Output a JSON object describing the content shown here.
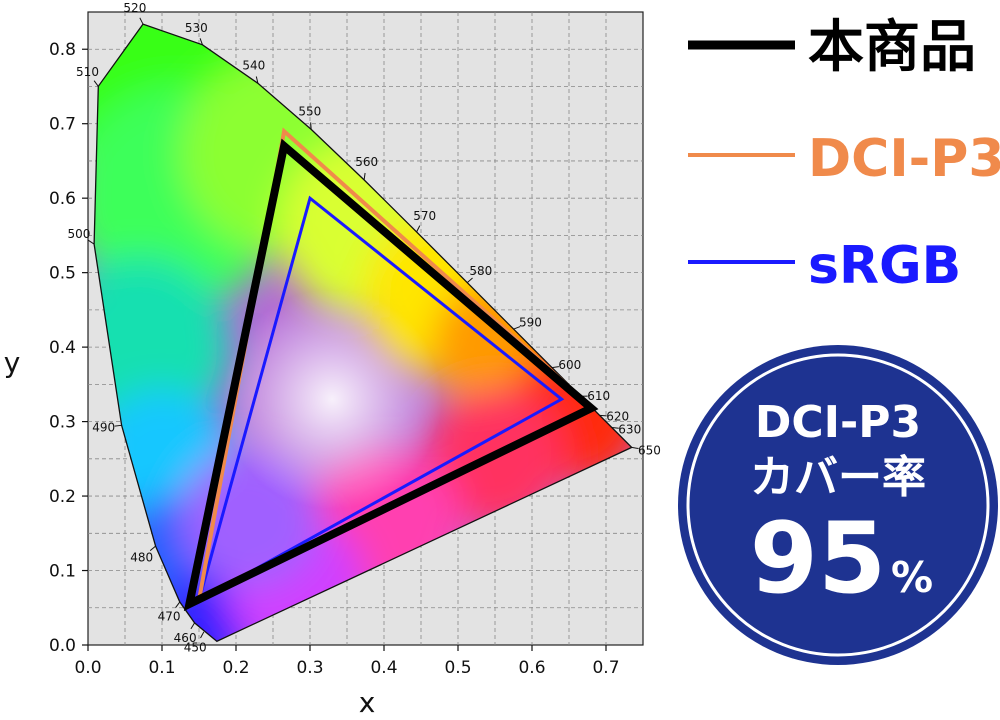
{
  "chart_data": {
    "type": "scatter",
    "xlabel": "x",
    "ylabel": "y",
    "xlim": [
      0.0,
      0.75
    ],
    "ylim": [
      0.0,
      0.85
    ],
    "x_ticks": [
      "0.0",
      "0.1",
      "0.2",
      "0.3",
      "0.4",
      "0.5",
      "0.6",
      "0.7"
    ],
    "y_ticks": [
      "0.0",
      "0.1",
      "0.2",
      "0.3",
      "0.4",
      "0.5",
      "0.6",
      "0.7",
      "0.8"
    ],
    "grid": true,
    "locus_labels": [
      "450",
      "460",
      "470",
      "480",
      "490",
      "500",
      "510",
      "520",
      "530",
      "540",
      "550",
      "560",
      "570",
      "580",
      "590",
      "600",
      "610",
      "620",
      "630",
      "650"
    ],
    "series": [
      {
        "name": "本商品",
        "color": "#000000",
        "points": [
          [
            0.68,
            0.318
          ],
          [
            0.265,
            0.67
          ],
          [
            0.137,
            0.055
          ]
        ]
      },
      {
        "name": "DCI-P3",
        "color": "#f08a4b",
        "points": [
          [
            0.68,
            0.32
          ],
          [
            0.265,
            0.69
          ],
          [
            0.15,
            0.06
          ]
        ]
      },
      {
        "name": "sRGB",
        "color": "#1a1aff",
        "points": [
          [
            0.64,
            0.33
          ],
          [
            0.3,
            0.6
          ],
          [
            0.15,
            0.06
          ]
        ]
      }
    ],
    "legend": [
      {
        "label": "本商品",
        "color": "#000000"
      },
      {
        "label": "DCI-P3",
        "color": "#f08a4b"
      },
      {
        "label": "sRGB",
        "color": "#1a1aff"
      }
    ],
    "legend_position": "top-right"
  },
  "badge": {
    "line1": "DCI-P3",
    "line2": "カバー率",
    "value": "95",
    "unit": "%",
    "color": "#1e3391"
  }
}
